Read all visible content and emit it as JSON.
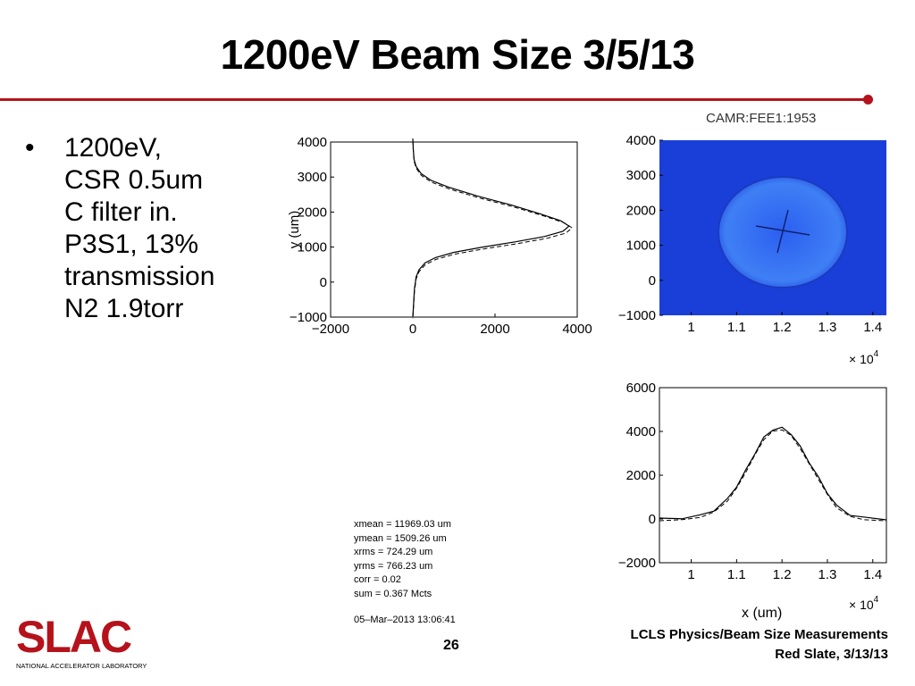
{
  "slide": {
    "title": "1200eV Beam Size 3/5/13",
    "page_number": "26",
    "footer_line1": "LCLS Physics/Beam Size Measurements",
    "footer_line2": "Red Slate, 3/13/13",
    "accent_color": "#b5121b"
  },
  "bullets": [
    {
      "lines": [
        "1200eV,",
        "CSR 0.5um",
        "C filter in.",
        "P3S1, 13%",
        "transmission",
        "N2 1.9torr"
      ]
    }
  ],
  "logo": {
    "text": "SLAC",
    "subtitle": "NATIONAL ACCELERATOR LABORATORY",
    "icon": "slac-logo"
  },
  "camera_title": "CAMR:FEE1:1953",
  "x_axis_label": "x  (um)",
  "stats": [
    "xmean = 11969.03 um",
    "ymean = 1509.26 um",
    "xrms = 724.29 um",
    "yrms = 766.23 um",
    "corr = 0.02",
    "sum = 0.367 Mcts"
  ],
  "stats_timestamp": "05–Mar–2013 13:06:41",
  "chart_data": [
    {
      "type": "line",
      "orientation": "y-profile",
      "ylabel": "y (um)",
      "xlim": [
        -2000,
        4000
      ],
      "ylim": [
        -1000,
        4000
      ],
      "x_ticks": [
        "−2000",
        "0",
        "2000",
        "4000"
      ],
      "y_ticks": [
        "−1000",
        "0",
        "1000",
        "2000",
        "3000",
        "4000"
      ],
      "series": [
        {
          "x": [
            0,
            10,
            30,
            80,
            200,
            450,
            900,
            1600,
            2400,
            3100,
            3600,
            3800,
            3650,
            3200,
            2500,
            1700,
            1000,
            550,
            300,
            150,
            80,
            40,
            0
          ],
          "y": [
            4100,
            3800,
            3500,
            3300,
            3100,
            2900,
            2700,
            2450,
            2200,
            1950,
            1750,
            1600,
            1450,
            1300,
            1150,
            1000,
            850,
            700,
            550,
            350,
            150,
            -200,
            -1000
          ]
        }
      ]
    },
    {
      "type": "heatmap",
      "title": "CAMR:FEE1:1953",
      "xlim": [
        0.93,
        1.43
      ],
      "ylim": [
        -1000,
        4000
      ],
      "x_ticks": [
        "1",
        "1.1",
        "1.2",
        "1.3",
        "1.4"
      ],
      "y_ticks": [
        "−1000",
        "0",
        "1000",
        "2000",
        "3000",
        "4000"
      ],
      "x_scale_label": "× 10",
      "x_scale_exp": "4",
      "background_color": "#1a3fd8",
      "spot_color": "#3f7ff5"
    },
    {
      "type": "line",
      "orientation": "x-profile",
      "xlabel": "x  (um)",
      "xlim": [
        0.93,
        1.43
      ],
      "ylim": [
        -2000,
        6000
      ],
      "x_ticks": [
        "1",
        "1.1",
        "1.2",
        "1.3",
        "1.4"
      ],
      "y_ticks": [
        "−2000",
        "0",
        "2000",
        "4000",
        "6000"
      ],
      "x_scale_label": "× 10",
      "x_scale_exp": "4",
      "series": [
        {
          "x": [
            0.93,
            0.98,
            1.02,
            1.05,
            1.08,
            1.1,
            1.12,
            1.14,
            1.16,
            1.18,
            1.2,
            1.22,
            1.24,
            1.26,
            1.28,
            1.3,
            1.32,
            1.35,
            1.38,
            1.43
          ],
          "y": [
            0,
            50,
            150,
            400,
            900,
            1500,
            2200,
            3000,
            3700,
            4100,
            4150,
            3900,
            3300,
            2600,
            1900,
            1200,
            600,
            200,
            50,
            0
          ]
        }
      ]
    }
  ]
}
